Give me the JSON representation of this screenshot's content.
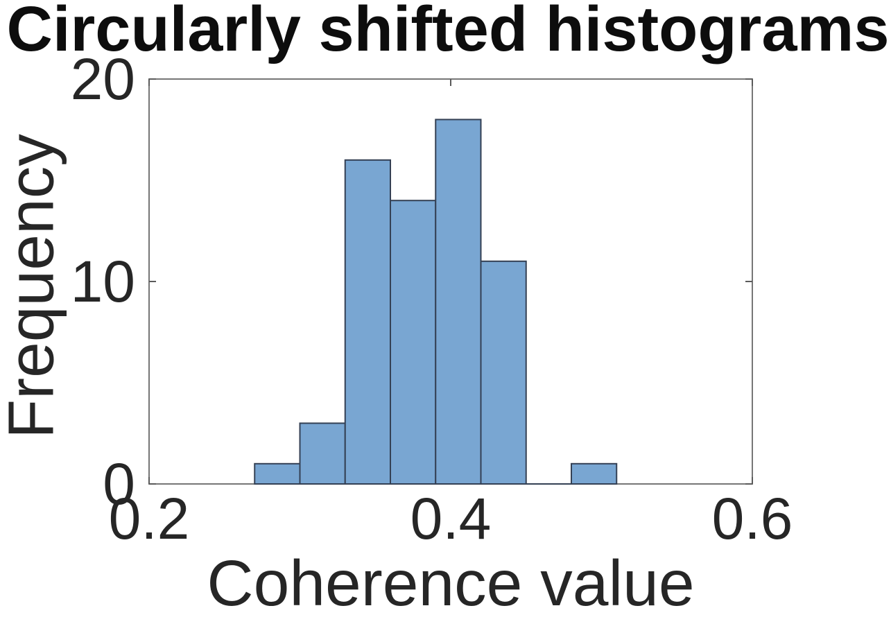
{
  "figure": {
    "background": "#ffffff"
  },
  "chart_data": {
    "type": "bar",
    "subtype": "histogram",
    "title": "Circularly shifted histograms",
    "xlabel": "Coherence value",
    "ylabel": "Frequency",
    "bin_edges": [
      0.27,
      0.3,
      0.33,
      0.36,
      0.39,
      0.42,
      0.45,
      0.48,
      0.51
    ],
    "counts": [
      1,
      3,
      16,
      14,
      18,
      11,
      0,
      1
    ],
    "xlim": [
      0.2,
      0.6
    ],
    "ylim": [
      0,
      20
    ],
    "xticks": [
      0.2,
      0.4,
      0.6
    ],
    "xtick_labels": [
      "0.2",
      "0.4",
      "0.6"
    ],
    "yticks": [
      0,
      10,
      20
    ],
    "ytick_labels": [
      "0",
      "10",
      "20"
    ],
    "grid": false,
    "legend": null,
    "colors": {
      "bar_fill": "#79a6d2",
      "bar_edge": "#344054",
      "axis_box": "#767676",
      "tick_mark": "#5a5a5a",
      "text": "#262626"
    }
  }
}
